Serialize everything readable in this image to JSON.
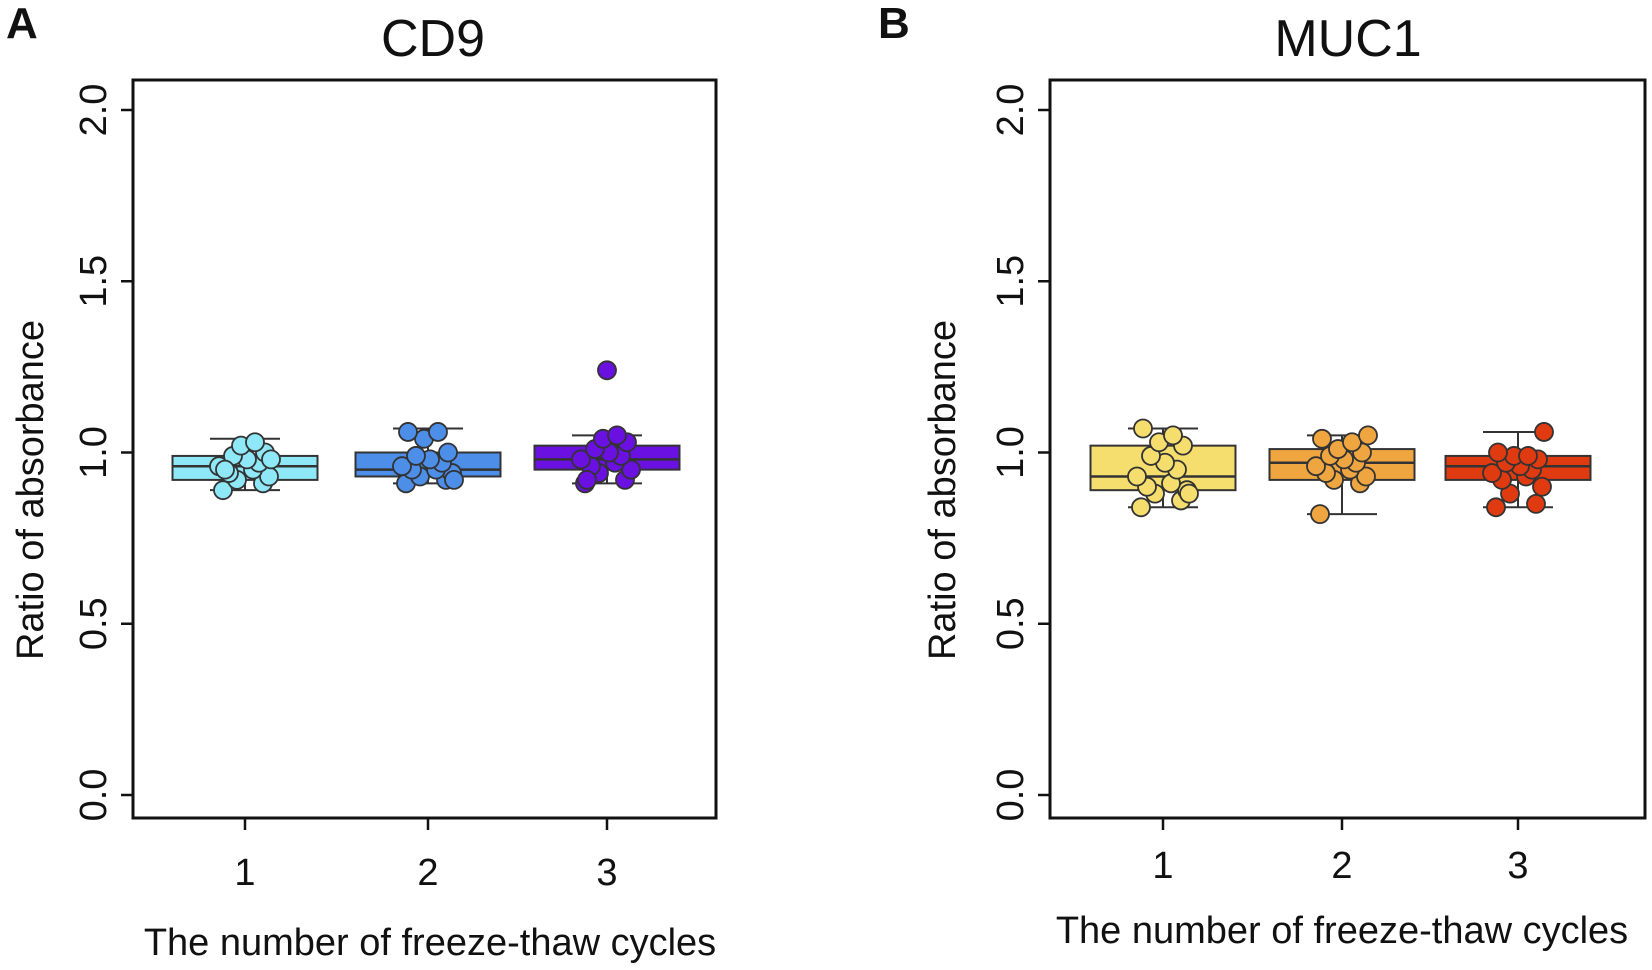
{
  "panels": [
    {
      "letter": "A",
      "title": "CD9",
      "xlabel": "The number of freeze-thaw cycles",
      "ylabel": "Ratio of absorbance"
    },
    {
      "letter": "B",
      "title": "MUC1",
      "xlabel": "The number of freeze-thaw cycles",
      "ylabel": "Ratio of absorbance"
    }
  ],
  "chart_data": [
    {
      "type": "boxplot",
      "title": "CD9",
      "xlabel": "The number of freeze-thaw cycles",
      "ylabel": "Ratio of absorbance",
      "ylim": [
        0,
        2.0
      ],
      "yticks": [
        "0.0",
        "0.5",
        "1.0",
        "1.5",
        "2.0"
      ],
      "categories": [
        "1",
        "2",
        "3"
      ],
      "grid": false,
      "series": [
        {
          "name": "1",
          "color": "#8fe8f8",
          "min": 0.89,
          "q1": 0.92,
          "median": 0.96,
          "q3": 0.99,
          "max": 1.04,
          "points": [
            0.89,
            0.91,
            0.92,
            0.93,
            0.94,
            0.95,
            0.96,
            0.97,
            0.98,
            0.99,
            1.0,
            1.02,
            1.03,
            0.95,
            0.98
          ]
        },
        {
          "name": "2",
          "color": "#4d8fe8",
          "min": 0.91,
          "q1": 0.93,
          "median": 0.95,
          "q3": 1.0,
          "max": 1.07,
          "points": [
            0.91,
            0.92,
            0.93,
            0.94,
            0.95,
            0.95,
            0.96,
            0.97,
            0.98,
            0.99,
            1.0,
            1.04,
            1.06,
            1.06,
            0.92
          ]
        },
        {
          "name": "3",
          "color": "#6a10e0",
          "min": 0.91,
          "q1": 0.95,
          "median": 0.98,
          "q3": 1.02,
          "max": 1.05,
          "points": [
            0.91,
            0.92,
            0.94,
            0.95,
            0.96,
            0.97,
            0.98,
            0.99,
            1.0,
            1.01,
            1.03,
            1.04,
            1.05,
            0.92,
            1.24
          ]
        }
      ]
    },
    {
      "type": "boxplot",
      "title": "MUC1",
      "xlabel": "The number of freeze-thaw cycles",
      "ylabel": "Ratio of absorbance",
      "ylim": [
        0,
        2.0
      ],
      "yticks": [
        "0.0",
        "0.5",
        "1.0",
        "1.5",
        "2.0"
      ],
      "categories": [
        "1",
        "2",
        "3"
      ],
      "grid": false,
      "series": [
        {
          "name": "1",
          "color": "#f5de6e",
          "min": 0.84,
          "q1": 0.89,
          "median": 0.93,
          "q3": 1.02,
          "max": 1.07,
          "points": [
            0.84,
            0.86,
            0.88,
            0.89,
            0.9,
            0.91,
            0.93,
            0.95,
            0.97,
            0.99,
            1.02,
            1.03,
            1.05,
            1.07,
            0.88
          ]
        },
        {
          "name": "2",
          "color": "#f0a640",
          "min": 0.82,
          "q1": 0.92,
          "median": 0.97,
          "q3": 1.01,
          "max": 1.05,
          "points": [
            0.82,
            0.91,
            0.92,
            0.93,
            0.94,
            0.95,
            0.96,
            0.97,
            0.98,
            0.99,
            1.0,
            1.01,
            1.03,
            1.04,
            1.05
          ]
        },
        {
          "name": "3",
          "color": "#e03a10",
          "min": 0.84,
          "q1": 0.92,
          "median": 0.96,
          "q3": 0.99,
          "max": 1.06,
          "points": [
            0.84,
            0.85,
            0.88,
            0.9,
            0.92,
            0.93,
            0.94,
            0.95,
            0.96,
            0.97,
            0.98,
            0.99,
            0.99,
            1.0,
            1.06
          ]
        }
      ]
    }
  ]
}
